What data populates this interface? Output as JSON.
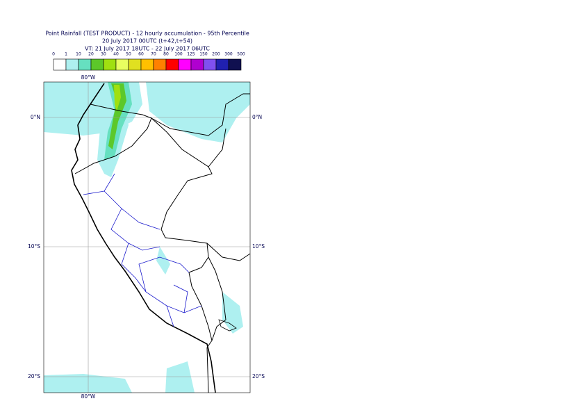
{
  "header": {
    "title_lines": [
      "Point Rainfall (TEST PRODUCT) - 12 hourly accumulation - 95th Percentile",
      "20 July 2017 00UTC (t+42,t+54)",
      "VT: 21 July 2017 18UTC - 22 July 2017 06UTC"
    ]
  },
  "legend": {
    "thresholds": [
      0,
      1,
      10,
      20,
      30,
      40,
      50,
      60,
      70,
      80,
      100,
      125,
      150,
      200,
      300,
      500
    ],
    "colors": [
      "#ffffff",
      "#aef0f0",
      "#66e0c0",
      "#5cc82a",
      "#a0e010",
      "#e8ff60",
      "#e0e020",
      "#ffc000",
      "#ff8000",
      "#ff0000",
      "#ff00ff",
      "#b000d0",
      "#8050f0",
      "#2020b0",
      "#101050"
    ]
  },
  "map": {
    "lon_label": "80°W",
    "lat_labels": [
      "0°N",
      "10°S",
      "20°S"
    ]
  }
}
